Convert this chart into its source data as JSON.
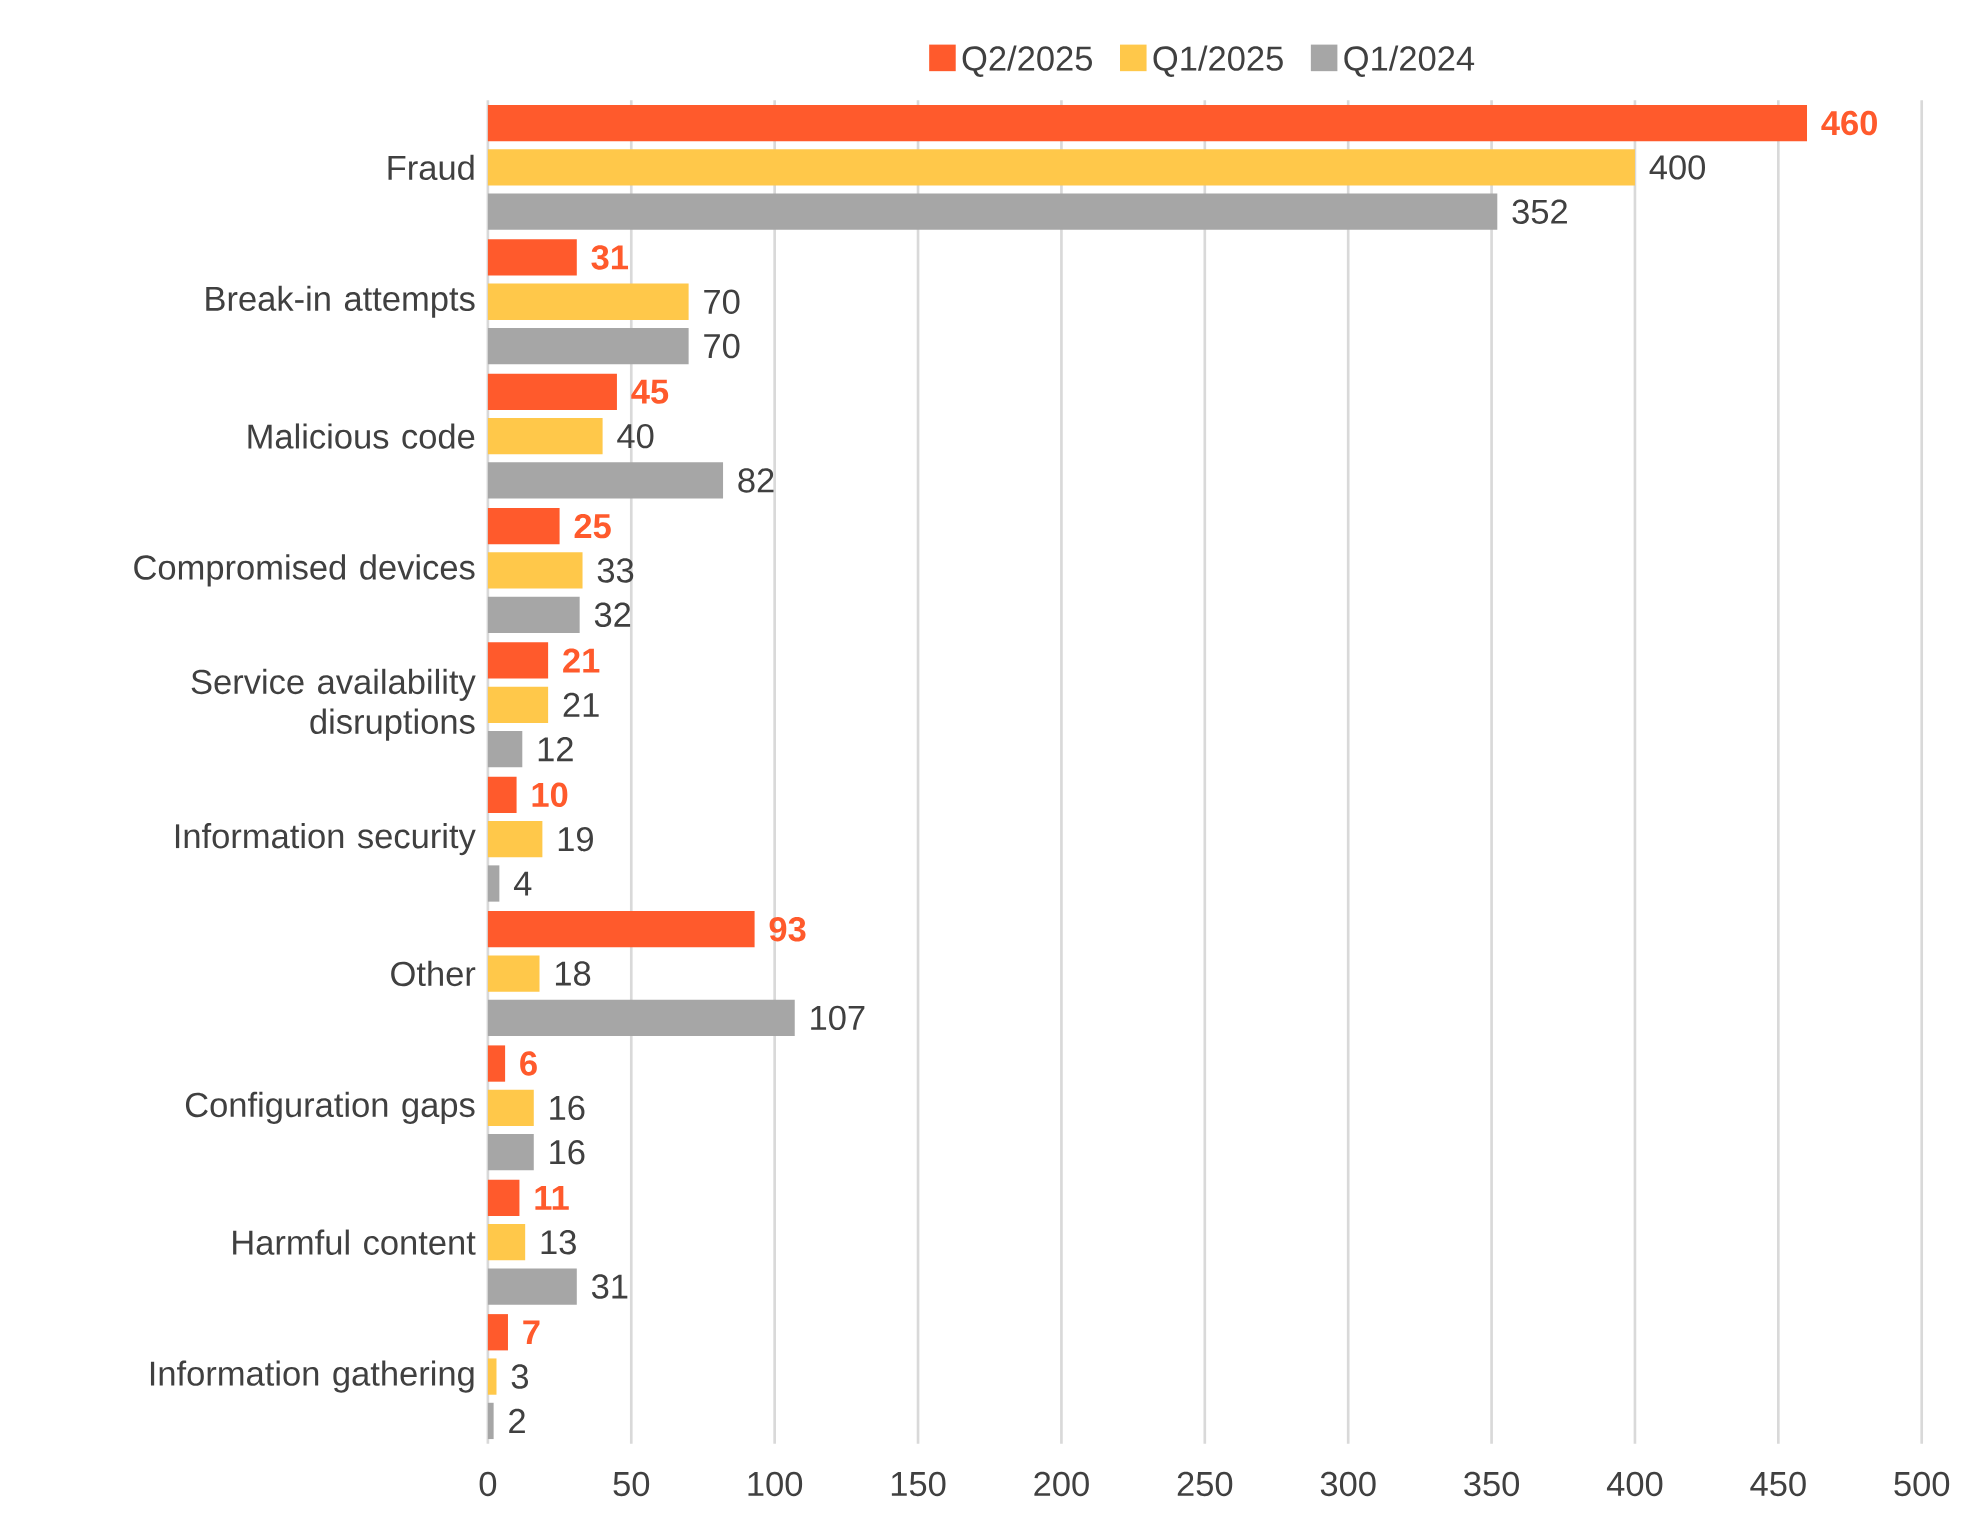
{
  "chart_data": {
    "type": "bar",
    "orientation": "horizontal",
    "categories": [
      "Fraud",
      "Break-in attempts",
      "Malicious code",
      "Compromised devices",
      "Service availability disruptions",
      "Information security",
      "Other",
      "Configuration gaps",
      "Harmful content",
      "Information gathering"
    ],
    "series": [
      {
        "name": "Q2/2025",
        "color": "#ff5a2c",
        "values": [
          460,
          31,
          45,
          25,
          21,
          10,
          93,
          6,
          11,
          7
        ]
      },
      {
        "name": "Q1/2025",
        "color": "#ffc84a",
        "values": [
          400,
          70,
          40,
          33,
          21,
          19,
          18,
          16,
          13,
          3
        ]
      },
      {
        "name": "Q1/2024",
        "color": "#a6a6a6",
        "values": [
          352,
          70,
          82,
          32,
          12,
          4,
          107,
          16,
          31,
          2
        ]
      }
    ],
    "xlim": [
      0,
      500
    ],
    "xticks": [
      0,
      50,
      100,
      150,
      200,
      250,
      300,
      350,
      400,
      450,
      500
    ],
    "grid": "x",
    "legend": "top",
    "data_labels": true
  }
}
